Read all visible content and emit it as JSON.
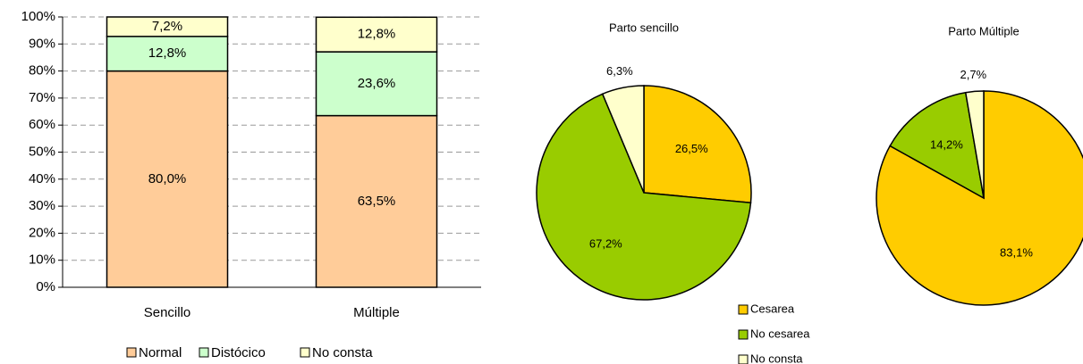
{
  "chart_data": [
    {
      "type": "stacked_bar",
      "categories": [
        "Sencillo",
        "Múltiple"
      ],
      "series": [
        {
          "name": "Normal",
          "color": "#FFCC99",
          "values": [
            80.0,
            63.5
          ],
          "value_labels": [
            "80,0%",
            "63,5%"
          ]
        },
        {
          "name": "Distócico",
          "color": "#CCFFCC",
          "values": [
            12.8,
            23.6
          ],
          "value_labels": [
            "12,8%",
            "23,6%"
          ]
        },
        {
          "name": "No consta",
          "color": "#FFFFCC",
          "values": [
            7.2,
            12.8
          ],
          "value_labels": [
            "7,2%",
            "12,8%"
          ]
        }
      ],
      "ylim": [
        0,
        100
      ],
      "yticks": [
        {
          "value": 0,
          "label": "0%"
        },
        {
          "value": 10,
          "label": "10%"
        },
        {
          "value": 20,
          "label": "20%"
        },
        {
          "value": 30,
          "label": "30%"
        },
        {
          "value": 40,
          "label": "40%"
        },
        {
          "value": 50,
          "label": "50%"
        },
        {
          "value": 60,
          "label": "60%"
        },
        {
          "value": 70,
          "label": "70%"
        },
        {
          "value": 80,
          "label": "80%"
        },
        {
          "value": 90,
          "label": "90%"
        },
        {
          "value": 100,
          "label": "100%"
        }
      ],
      "grid": true,
      "legend": "bottom"
    },
    {
      "type": "pie",
      "title": "Parto sencillo",
      "categories": [
        "Cesarea",
        "No cesarea",
        "No consta"
      ],
      "colors": [
        "#FFCC00",
        "#99CC00",
        "#FFFFCC"
      ],
      "values": [
        26.5,
        67.2,
        6.3
      ],
      "value_labels": [
        "26,5%",
        "67,2%",
        "6,3%"
      ],
      "legend": "bottom"
    },
    {
      "type": "pie",
      "title": "Parto Múltiple",
      "categories": [
        "Cesarea",
        "No cesarea",
        "No consta"
      ],
      "colors": [
        "#FFCC00",
        "#99CC00",
        "#FFFFCC"
      ],
      "values": [
        83.1,
        14.2,
        2.7
      ],
      "value_labels": [
        "83,1%",
        "14,2%",
        "2,7%"
      ]
    }
  ]
}
